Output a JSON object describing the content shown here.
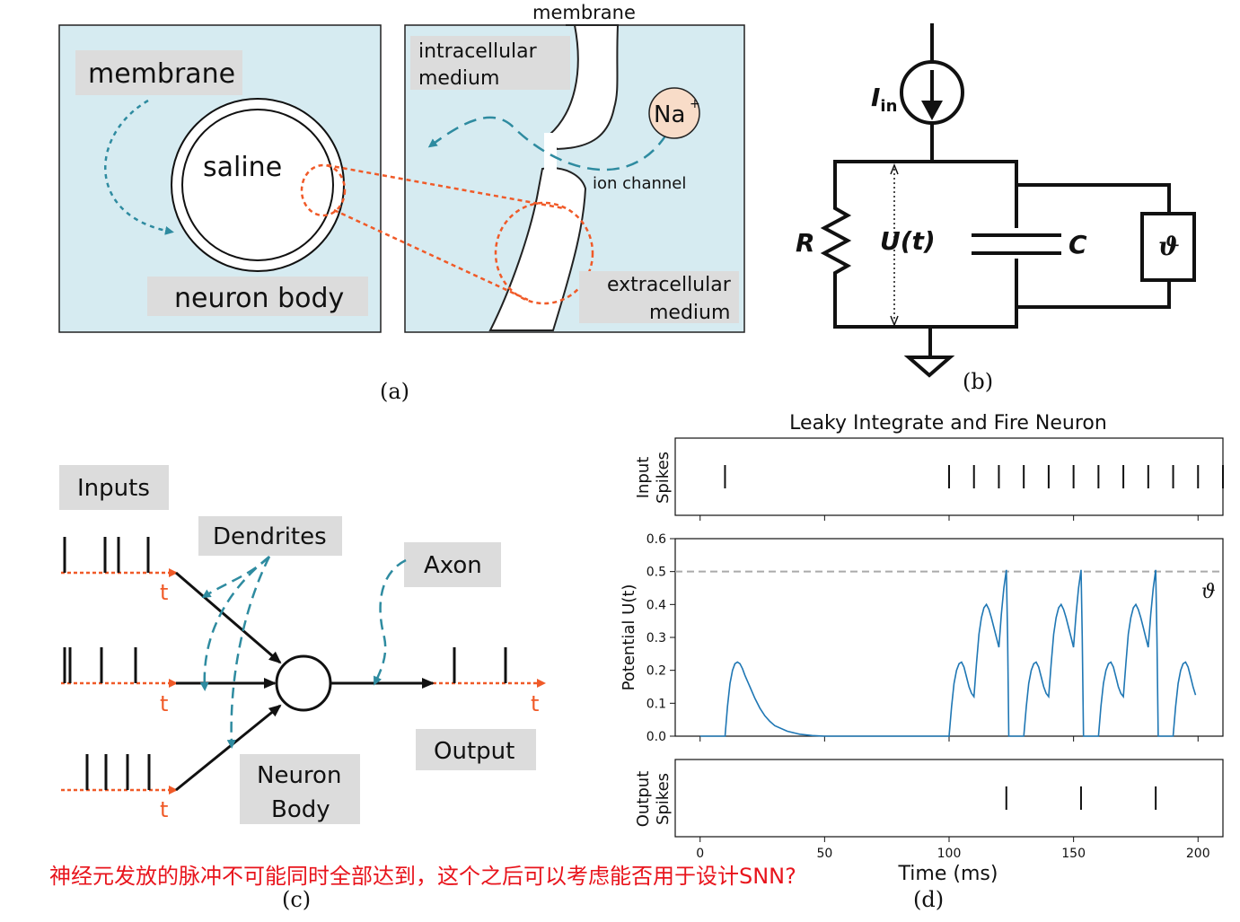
{
  "panel_a": {
    "caption": "(a)",
    "left": {
      "membrane": "membrane",
      "saline": "saline",
      "neuron_body": "neuron body"
    },
    "right": {
      "membrane_top": "membrane",
      "intracellular_1": "intracellular",
      "intracellular_2": "medium",
      "ion": "Na",
      "ion_charge": "+",
      "ion_channel": "ion channel",
      "extracellular_1": "extracellular",
      "extracellular_2": "medium"
    }
  },
  "panel_b": {
    "caption": "(b)",
    "current_label": "I",
    "current_sub": "in",
    "resistor": "R",
    "voltage": "U(t)",
    "capacitor": "C",
    "threshold": "ϑ"
  },
  "panel_c": {
    "caption": "(c)",
    "inputs": "Inputs",
    "dendrites": "Dendrites",
    "axon": "Axon",
    "output": "Output",
    "neuron_body_1": "Neuron",
    "neuron_body_2": "Body",
    "t": "t"
  },
  "panel_d": {
    "caption": "(d)",
    "title": "Leaky Integrate and Fire Neuron",
    "input_label_1": "Input",
    "input_label_2": "Spikes",
    "potential_label": "Potential U(t)",
    "output_label_1": "Output",
    "output_label_2": "Spikes",
    "xlabel": "Time (ms)",
    "threshold_symbol": "ϑ"
  },
  "annotation": {
    "text": "神经元发放的脉冲不可能同时全部达到，这个之后可以考虑能否用于设计SNN?",
    "color": "#e8141c"
  },
  "colors": {
    "panel_bg": "#d6ebf1",
    "label_bg": "#dcdcdc",
    "orange": "#f05a28",
    "teal": "#2e8ba0",
    "trace": "#1f77b4",
    "na_fill": "#f8dcc8"
  },
  "chart_data": {
    "type": "line",
    "title": "Leaky Integrate and Fire Neuron",
    "xlabel": "Time (ms)",
    "ylabel": "Potential U(t)",
    "xlim": [
      -10,
      210
    ],
    "ylim": [
      0.0,
      0.6
    ],
    "x_ticks": [
      0,
      50,
      100,
      150,
      200
    ],
    "y_ticks": [
      0.0,
      0.1,
      0.2,
      0.3,
      0.4,
      0.5,
      0.6
    ],
    "threshold": 0.5,
    "input_spikes": [
      10,
      100,
      110,
      120,
      130,
      140,
      150,
      160,
      170,
      180,
      190,
      200,
      210
    ],
    "output_spikes": [
      123,
      153,
      183
    ],
    "series": [
      {
        "x": [
          0,
          10,
          11,
          12,
          13,
          14,
          15,
          16,
          17,
          18,
          20,
          22,
          24,
          26,
          28,
          30,
          35,
          40,
          45,
          50,
          60,
          70,
          80,
          90,
          100,
          101,
          102,
          103,
          104,
          105,
          106,
          107,
          108,
          109,
          110,
          111,
          112,
          113,
          114,
          115,
          116,
          117,
          118,
          119,
          120,
          121,
          122,
          123,
          123.5,
          124,
          125,
          126,
          127,
          128,
          129,
          130,
          131,
          132,
          133,
          134,
          135,
          136,
          137,
          138,
          139,
          140,
          141,
          142,
          143,
          144,
          145,
          146,
          147,
          148,
          149,
          150,
          151,
          152,
          153,
          153.5,
          154,
          155,
          156,
          157,
          158,
          159,
          160,
          161,
          162,
          163,
          164,
          165,
          166,
          167,
          168,
          169,
          170,
          171,
          172,
          173,
          174,
          175,
          176,
          177,
          178,
          179,
          180,
          181,
          182,
          183,
          183.5,
          184,
          185,
          186,
          187,
          188,
          189,
          190,
          191,
          192,
          193,
          194,
          195,
          196,
          197,
          198,
          199
        ],
        "y": [
          0,
          0,
          0.09,
          0.16,
          0.2,
          0.22,
          0.225,
          0.22,
          0.205,
          0.185,
          0.15,
          0.115,
          0.085,
          0.062,
          0.045,
          0.032,
          0.015,
          0.006,
          0.002,
          0.0,
          0.0,
          0.0,
          0.0,
          0.0,
          0.0,
          0.09,
          0.16,
          0.2,
          0.22,
          0.225,
          0.21,
          0.18,
          0.15,
          0.13,
          0.12,
          0.22,
          0.31,
          0.36,
          0.39,
          0.4,
          0.385,
          0.36,
          0.33,
          0.3,
          0.27,
          0.37,
          0.45,
          0.505,
          0.3,
          0.0,
          0.0,
          0.0,
          0.0,
          0.0,
          0.0,
          0.0,
          0.09,
          0.16,
          0.2,
          0.22,
          0.225,
          0.21,
          0.18,
          0.15,
          0.13,
          0.12,
          0.22,
          0.31,
          0.36,
          0.39,
          0.4,
          0.385,
          0.36,
          0.33,
          0.3,
          0.27,
          0.37,
          0.45,
          0.505,
          0.3,
          0.0,
          0.0,
          0.0,
          0.0,
          0.0,
          0.0,
          0.0,
          0.09,
          0.16,
          0.2,
          0.22,
          0.225,
          0.21,
          0.18,
          0.15,
          0.13,
          0.12,
          0.22,
          0.31,
          0.36,
          0.39,
          0.4,
          0.385,
          0.36,
          0.33,
          0.3,
          0.27,
          0.37,
          0.45,
          0.505,
          0.3,
          0.0,
          0.0,
          0.0,
          0.0,
          0.0,
          0.0,
          0.0,
          0.09,
          0.16,
          0.2,
          0.22,
          0.225,
          0.21,
          0.18,
          0.15,
          0.125
        ]
      }
    ]
  }
}
